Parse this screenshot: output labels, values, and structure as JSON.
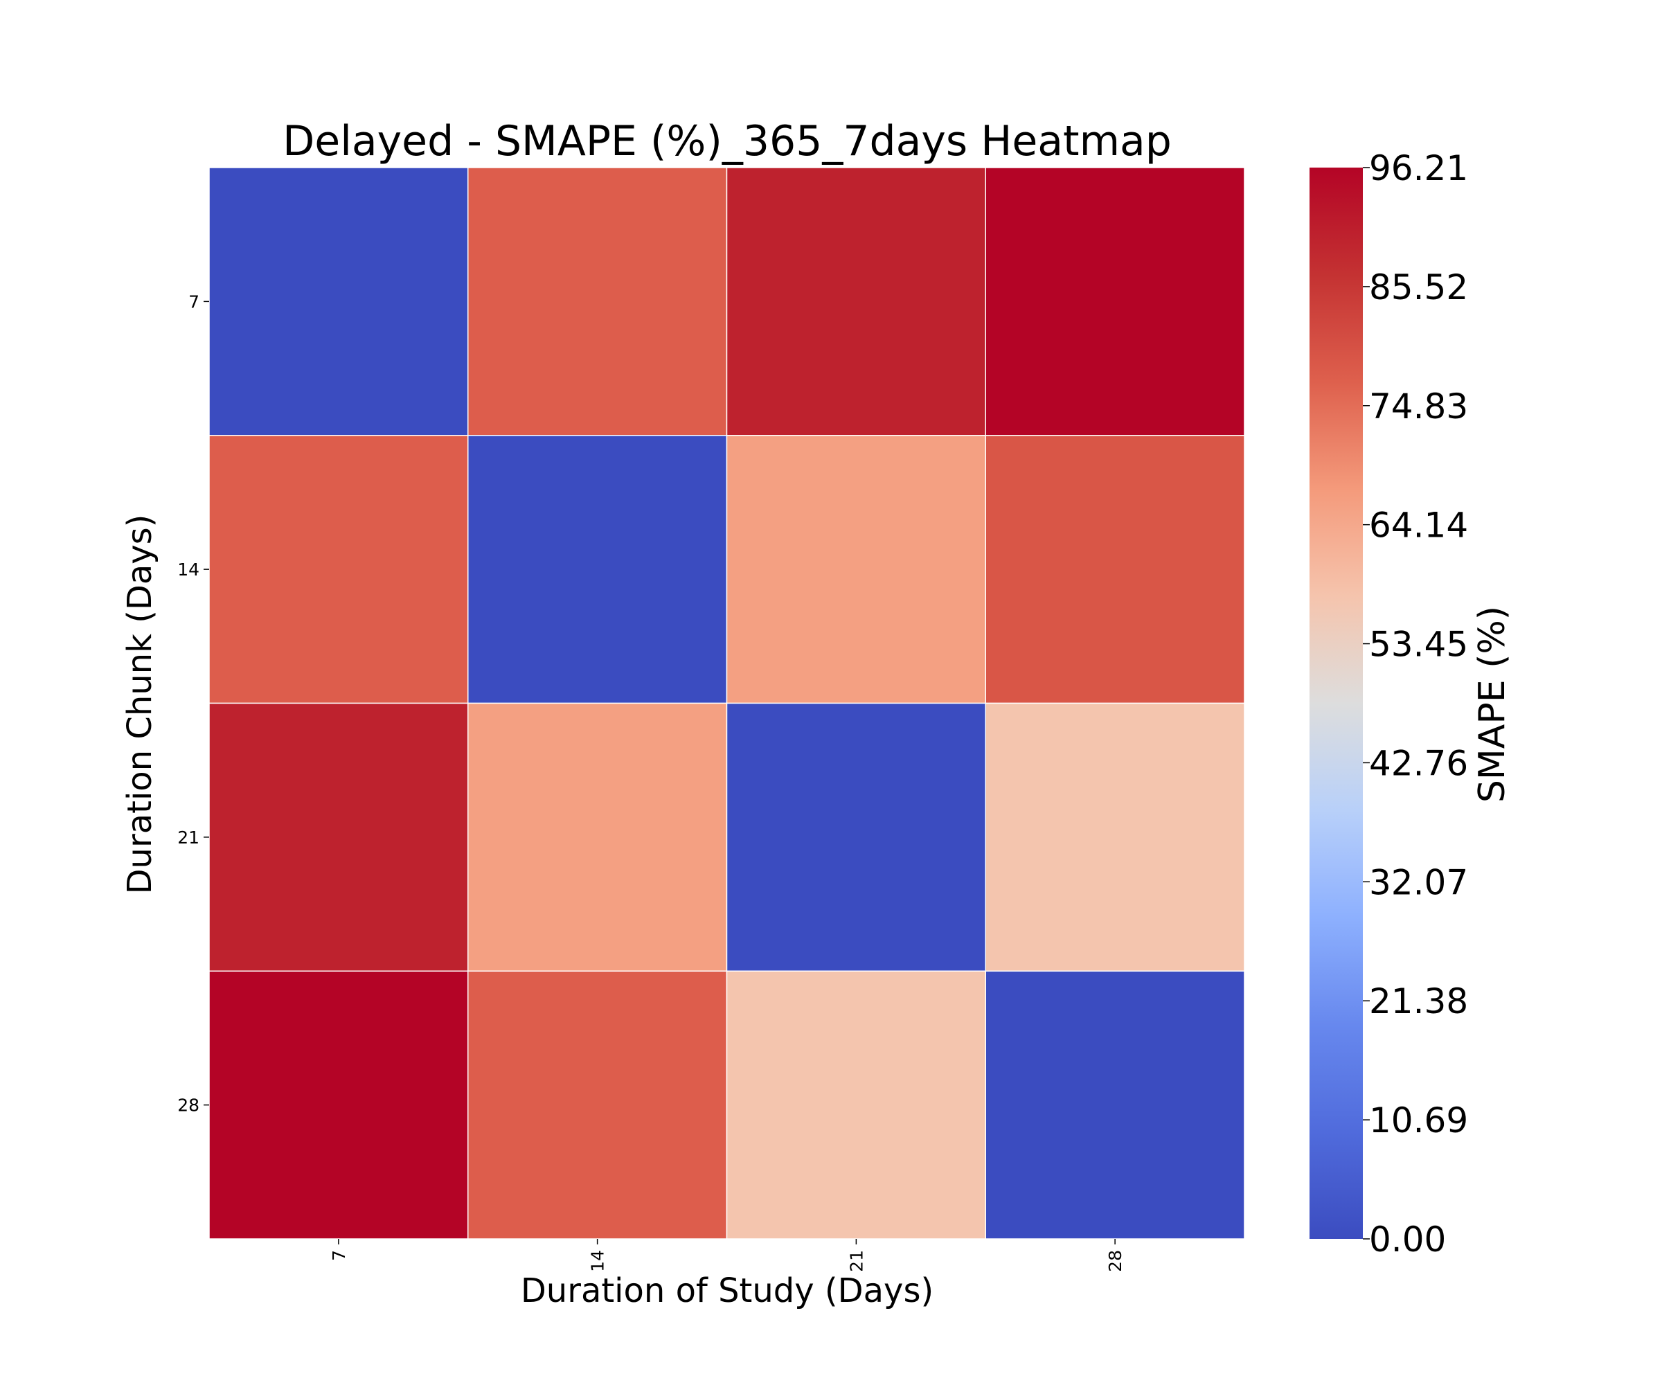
{
  "chart_data": {
    "type": "heatmap",
    "title": "Delayed - SMAPE (%)_365_7days Heatmap",
    "xlabel": "Duration of Study (Days)",
    "ylabel": "Duration Chunk (Days)",
    "x_categories": [
      "7",
      "14",
      "21",
      "28"
    ],
    "y_categories": [
      "7",
      "14",
      "21",
      "28"
    ],
    "values": [
      [
        0.0,
        77.5,
        90.0,
        96.21
      ],
      [
        77.5,
        0.0,
        66.0,
        79.0
      ],
      [
        90.0,
        66.0,
        0.0,
        57.5
      ],
      [
        96.21,
        77.5,
        57.5,
        0.0
      ]
    ],
    "colorbar": {
      "label": "SMAPE (%)",
      "range": [
        0.0,
        96.21
      ],
      "ticks": [
        "0.00",
        "10.69",
        "21.38",
        "32.07",
        "42.76",
        "53.45",
        "64.14",
        "74.83",
        "85.52",
        "96.21"
      ],
      "colormap": "coolwarm",
      "color_low": "#3b4cc0",
      "color_mid": "#dddddd",
      "color_high": "#b40426"
    },
    "cell_border_color": "#ffffff",
    "grid": false
  }
}
